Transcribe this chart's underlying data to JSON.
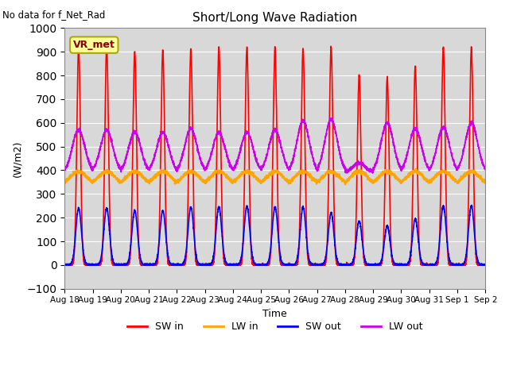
{
  "title": "Short/Long Wave Radiation",
  "top_left_text": "No data for f_Net_Rad",
  "ylabel": "(W/m2)",
  "xlabel": "Time",
  "ylim": [
    -100,
    1000
  ],
  "yticks": [
    -100,
    0,
    100,
    200,
    300,
    400,
    500,
    600,
    700,
    800,
    900,
    1000
  ],
  "background_color": "#d8d8d8",
  "figure_facecolor": "#ffffff",
  "legend_box_label": "VR_met",
  "legend_box_facecolor": "#ffff99",
  "legend_box_edgecolor": "#aaaa00",
  "legend_box_text_color": "#880000",
  "x_tick_labels": [
    "Aug 18",
    "Aug 19",
    "Aug 20",
    "Aug 21",
    "Aug 22",
    "Aug 23",
    "Aug 24",
    "Aug 25",
    "Aug 26",
    "Aug 27",
    "Aug 28",
    "Aug 29",
    "Aug 30",
    "Aug 31",
    "Sep 1",
    "Sep 2"
  ],
  "series": [
    {
      "label": "SW in",
      "color": "#ff0000",
      "linewidth": 1.2
    },
    {
      "label": "LW in",
      "color": "#ffa500",
      "linewidth": 1.2
    },
    {
      "label": "SW out",
      "color": "#0000ff",
      "linewidth": 1.2
    },
    {
      "label": "LW out",
      "color": "#cc00ee",
      "linewidth": 1.2
    }
  ],
  "n_days": 15,
  "ppd": 288,
  "sw_in_peaks": [
    920,
    920,
    900,
    905,
    910,
    920,
    920,
    920,
    915,
    920,
    800,
    790,
    840,
    920,
    920
  ],
  "sw_out_peaks": [
    240,
    240,
    230,
    230,
    245,
    245,
    248,
    245,
    245,
    220,
    185,
    165,
    195,
    250,
    250
  ],
  "lw_in_base": 335,
  "lw_in_day_boost": 60,
  "lw_out_night": 390,
  "lw_out_day_peaks": [
    570,
    570,
    560,
    560,
    575,
    560,
    560,
    570,
    608,
    615,
    430,
    600,
    575,
    580,
    600
  ]
}
